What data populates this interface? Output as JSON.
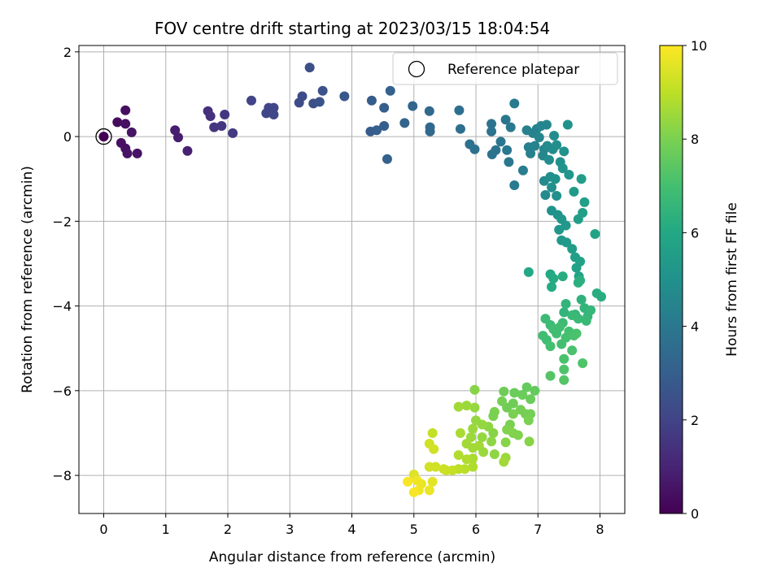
{
  "chart_data": {
    "type": "scatter",
    "title": "FOV centre drift starting at 2023/03/15 18:04:54",
    "xlabel": "Angular distance from reference (arcmin)",
    "ylabel": "Rotation from reference (arcmin)",
    "xlim": [
      -0.4,
      8.4
    ],
    "ylim": [
      -8.9,
      2.15
    ],
    "xticks": [
      "0",
      "1",
      "2",
      "3",
      "4",
      "5",
      "6",
      "7",
      "8"
    ],
    "yticks": [
      "2",
      "0",
      "−2",
      "−4",
      "−6",
      "−8"
    ],
    "grid": true,
    "legend": {
      "label": "Reference platepar",
      "position": "top-right",
      "point": {
        "x": 0,
        "y": 0
      }
    },
    "colorbar": {
      "label": "Hours from first FF file",
      "colormap": "viridis",
      "range": [
        0,
        10
      ],
      "ticks": [
        "0",
        "2",
        "4",
        "6",
        "8",
        "10"
      ]
    },
    "points": [
      {
        "x": 0.0,
        "y": 0.0,
        "t": 0.0
      },
      {
        "x": 0.22,
        "y": 0.34,
        "t": 0.3
      },
      {
        "x": 0.35,
        "y": 0.62,
        "t": 0.4
      },
      {
        "x": 0.35,
        "y": 0.3,
        "t": 0.4
      },
      {
        "x": 0.45,
        "y": 0.1,
        "t": 0.5
      },
      {
        "x": 0.28,
        "y": -0.15,
        "t": 0.4
      },
      {
        "x": 0.35,
        "y": -0.28,
        "t": 0.4
      },
      {
        "x": 0.38,
        "y": -0.4,
        "t": 0.5
      },
      {
        "x": 0.54,
        "y": -0.4,
        "t": 0.5
      },
      {
        "x": 1.15,
        "y": 0.15,
        "t": 0.8
      },
      {
        "x": 1.2,
        "y": -0.02,
        "t": 0.8
      },
      {
        "x": 1.35,
        "y": -0.34,
        "t": 0.9
      },
      {
        "x": 1.68,
        "y": 0.6,
        "t": 1.4
      },
      {
        "x": 1.72,
        "y": 0.48,
        "t": 1.4
      },
      {
        "x": 1.78,
        "y": 0.22,
        "t": 1.5
      },
      {
        "x": 1.9,
        "y": 0.25,
        "t": 1.6
      },
      {
        "x": 1.95,
        "y": 0.52,
        "t": 1.6
      },
      {
        "x": 2.08,
        "y": 0.08,
        "t": 1.7
      },
      {
        "x": 2.38,
        "y": 0.85,
        "t": 2.0
      },
      {
        "x": 2.62,
        "y": 0.55,
        "t": 2.1
      },
      {
        "x": 2.66,
        "y": 0.68,
        "t": 2.1
      },
      {
        "x": 2.74,
        "y": 0.68,
        "t": 2.1
      },
      {
        "x": 2.74,
        "y": 0.52,
        "t": 2.2
      },
      {
        "x": 3.15,
        "y": 0.8,
        "t": 2.3
      },
      {
        "x": 3.2,
        "y": 0.95,
        "t": 2.3
      },
      {
        "x": 3.32,
        "y": 1.63,
        "t": 2.4
      },
      {
        "x": 3.38,
        "y": 0.78,
        "t": 2.4
      },
      {
        "x": 3.48,
        "y": 0.82,
        "t": 2.5
      },
      {
        "x": 3.53,
        "y": 1.08,
        "t": 2.5
      },
      {
        "x": 3.88,
        "y": 0.95,
        "t": 2.7
      },
      {
        "x": 4.3,
        "y": 0.12,
        "t": 2.9
      },
      {
        "x": 4.32,
        "y": 0.85,
        "t": 2.9
      },
      {
        "x": 4.4,
        "y": 0.15,
        "t": 3.0
      },
      {
        "x": 4.52,
        "y": 0.25,
        "t": 3.0
      },
      {
        "x": 4.52,
        "y": 0.68,
        "t": 3.0
      },
      {
        "x": 4.57,
        "y": -0.53,
        "t": 3.1
      },
      {
        "x": 4.62,
        "y": 1.08,
        "t": 3.1
      },
      {
        "x": 4.85,
        "y": 0.32,
        "t": 3.2
      },
      {
        "x": 4.98,
        "y": 0.72,
        "t": 3.3
      },
      {
        "x": 5.25,
        "y": 0.6,
        "t": 3.4
      },
      {
        "x": 5.26,
        "y": 0.22,
        "t": 3.4
      },
      {
        "x": 5.26,
        "y": 0.12,
        "t": 3.4
      },
      {
        "x": 5.73,
        "y": 0.62,
        "t": 3.6
      },
      {
        "x": 5.75,
        "y": 0.18,
        "t": 3.6
      },
      {
        "x": 5.9,
        "y": -0.18,
        "t": 3.7
      },
      {
        "x": 5.98,
        "y": -0.3,
        "t": 3.7
      },
      {
        "x": 6.25,
        "y": 0.3,
        "t": 3.8
      },
      {
        "x": 6.25,
        "y": 0.12,
        "t": 3.8
      },
      {
        "x": 6.26,
        "y": -0.42,
        "t": 3.8
      },
      {
        "x": 6.32,
        "y": -0.32,
        "t": 3.8
      },
      {
        "x": 6.4,
        "y": -0.12,
        "t": 3.9
      },
      {
        "x": 6.48,
        "y": 0.4,
        "t": 3.9
      },
      {
        "x": 6.5,
        "y": -0.32,
        "t": 4.0
      },
      {
        "x": 6.53,
        "y": -0.6,
        "t": 4.0
      },
      {
        "x": 6.56,
        "y": 0.22,
        "t": 4.0
      },
      {
        "x": 6.62,
        "y": 0.78,
        "t": 4.1
      },
      {
        "x": 6.62,
        "y": -1.15,
        "t": 4.1
      },
      {
        "x": 6.76,
        "y": -0.8,
        "t": 4.2
      },
      {
        "x": 6.82,
        "y": 0.15,
        "t": 4.3
      },
      {
        "x": 6.85,
        "y": -0.25,
        "t": 4.3
      },
      {
        "x": 6.88,
        "y": -0.4,
        "t": 4.3
      },
      {
        "x": 6.92,
        "y": 0.08,
        "t": 4.4
      },
      {
        "x": 6.95,
        "y": -0.22,
        "t": 4.4
      },
      {
        "x": 6.98,
        "y": 0.18,
        "t": 4.4
      },
      {
        "x": 7.02,
        "y": -0.02,
        "t": 4.5
      },
      {
        "x": 7.05,
        "y": 0.25,
        "t": 4.5
      },
      {
        "x": 7.08,
        "y": -0.45,
        "t": 4.6
      },
      {
        "x": 7.1,
        "y": -0.3,
        "t": 4.6
      },
      {
        "x": 7.1,
        "y": -1.05,
        "t": 4.7
      },
      {
        "x": 7.12,
        "y": -1.38,
        "t": 4.7
      },
      {
        "x": 7.14,
        "y": 0.28,
        "t": 4.6
      },
      {
        "x": 7.15,
        "y": -0.22,
        "t": 4.7
      },
      {
        "x": 7.18,
        "y": -0.55,
        "t": 4.8
      },
      {
        "x": 7.2,
        "y": -0.95,
        "t": 4.9
      },
      {
        "x": 7.22,
        "y": -1.2,
        "t": 4.9
      },
      {
        "x": 7.22,
        "y": -1.75,
        "t": 5.0
      },
      {
        "x": 7.24,
        "y": -0.3,
        "t": 4.8
      },
      {
        "x": 7.26,
        "y": 0.02,
        "t": 4.8
      },
      {
        "x": 7.28,
        "y": -1.0,
        "t": 5.0
      },
      {
        "x": 7.3,
        "y": -0.2,
        "t": 4.9
      },
      {
        "x": 7.3,
        "y": -1.4,
        "t": 5.0
      },
      {
        "x": 7.32,
        "y": -1.85,
        "t": 5.1
      },
      {
        "x": 7.34,
        "y": -2.2,
        "t": 5.2
      },
      {
        "x": 7.36,
        "y": -0.6,
        "t": 5.0
      },
      {
        "x": 7.38,
        "y": -1.95,
        "t": 5.2
      },
      {
        "x": 7.38,
        "y": -2.45,
        "t": 5.3
      },
      {
        "x": 7.4,
        "y": -0.75,
        "t": 5.1
      },
      {
        "x": 7.42,
        "y": -0.35,
        "t": 5.0
      },
      {
        "x": 7.45,
        "y": -2.1,
        "t": 5.3
      },
      {
        "x": 7.46,
        "y": -2.5,
        "t": 5.4
      },
      {
        "x": 7.48,
        "y": 0.28,
        "t": 5.0
      },
      {
        "x": 7.5,
        "y": -0.9,
        "t": 5.2
      },
      {
        "x": 7.55,
        "y": -2.65,
        "t": 5.5
      },
      {
        "x": 7.58,
        "y": -1.3,
        "t": 5.4
      },
      {
        "x": 7.6,
        "y": -2.85,
        "t": 5.6
      },
      {
        "x": 7.62,
        "y": -3.1,
        "t": 5.7
      },
      {
        "x": 7.65,
        "y": -1.95,
        "t": 5.5
      },
      {
        "x": 7.66,
        "y": -3.3,
        "t": 5.8
      },
      {
        "x": 7.68,
        "y": -2.95,
        "t": 5.7
      },
      {
        "x": 7.7,
        "y": -1.0,
        "t": 5.5
      },
      {
        "x": 7.72,
        "y": -1.8,
        "t": 5.6
      },
      {
        "x": 7.75,
        "y": -1.55,
        "t": 5.6
      },
      {
        "x": 7.92,
        "y": -2.3,
        "t": 5.8
      },
      {
        "x": 7.95,
        "y": -3.7,
        "t": 6.2
      },
      {
        "x": 8.02,
        "y": -3.78,
        "t": 6.2
      },
      {
        "x": 6.85,
        "y": -3.2,
        "t": 6.0
      },
      {
        "x": 7.2,
        "y": -3.25,
        "t": 6.0
      },
      {
        "x": 7.22,
        "y": -3.55,
        "t": 6.1
      },
      {
        "x": 7.25,
        "y": -3.35,
        "t": 6.1
      },
      {
        "x": 7.4,
        "y": -3.3,
        "t": 6.2
      },
      {
        "x": 7.65,
        "y": -3.45,
        "t": 6.3
      },
      {
        "x": 7.68,
        "y": -3.4,
        "t": 6.3
      },
      {
        "x": 7.7,
        "y": -3.85,
        "t": 6.4
      },
      {
        "x": 7.45,
        "y": -3.95,
        "t": 6.5
      },
      {
        "x": 7.42,
        "y": -4.15,
        "t": 6.5
      },
      {
        "x": 7.6,
        "y": -4.2,
        "t": 6.6
      },
      {
        "x": 7.75,
        "y": -4.05,
        "t": 6.5
      },
      {
        "x": 7.8,
        "y": -4.25,
        "t": 6.6
      },
      {
        "x": 7.85,
        "y": -4.1,
        "t": 6.6
      },
      {
        "x": 7.78,
        "y": -4.35,
        "t": 6.7
      },
      {
        "x": 7.65,
        "y": -4.3,
        "t": 6.7
      },
      {
        "x": 7.55,
        "y": -4.22,
        "t": 6.7
      },
      {
        "x": 7.4,
        "y": -4.4,
        "t": 6.8
      },
      {
        "x": 7.2,
        "y": -4.45,
        "t": 6.8
      },
      {
        "x": 7.12,
        "y": -4.3,
        "t": 6.8
      },
      {
        "x": 7.08,
        "y": -4.7,
        "t": 6.9
      },
      {
        "x": 7.14,
        "y": -4.8,
        "t": 6.9
      },
      {
        "x": 7.2,
        "y": -4.95,
        "t": 7.0
      },
      {
        "x": 7.25,
        "y": -4.55,
        "t": 6.9
      },
      {
        "x": 7.3,
        "y": -4.65,
        "t": 6.9
      },
      {
        "x": 7.35,
        "y": -4.5,
        "t": 6.9
      },
      {
        "x": 7.38,
        "y": -4.9,
        "t": 7.0
      },
      {
        "x": 7.42,
        "y": -5.25,
        "t": 7.1
      },
      {
        "x": 7.45,
        "y": -4.75,
        "t": 7.0
      },
      {
        "x": 7.5,
        "y": -4.6,
        "t": 7.0
      },
      {
        "x": 7.55,
        "y": -5.05,
        "t": 7.1
      },
      {
        "x": 7.58,
        "y": -4.7,
        "t": 7.1
      },
      {
        "x": 7.62,
        "y": -4.65,
        "t": 7.1
      },
      {
        "x": 7.42,
        "y": -5.5,
        "t": 7.2
      },
      {
        "x": 7.72,
        "y": -5.35,
        "t": 7.2
      },
      {
        "x": 7.2,
        "y": -5.65,
        "t": 7.3
      },
      {
        "x": 7.42,
        "y": -5.75,
        "t": 7.3
      },
      {
        "x": 6.95,
        "y": -6.0,
        "t": 7.6
      },
      {
        "x": 6.82,
        "y": -5.92,
        "t": 7.6
      },
      {
        "x": 6.88,
        "y": -6.2,
        "t": 7.7
      },
      {
        "x": 6.75,
        "y": -6.1,
        "t": 7.7
      },
      {
        "x": 6.62,
        "y": -6.05,
        "t": 7.7
      },
      {
        "x": 6.6,
        "y": -6.3,
        "t": 7.8
      },
      {
        "x": 6.45,
        "y": -6.02,
        "t": 7.8
      },
      {
        "x": 6.5,
        "y": -6.4,
        "t": 7.8
      },
      {
        "x": 6.72,
        "y": -6.45,
        "t": 7.9
      },
      {
        "x": 6.8,
        "y": -6.55,
        "t": 7.9
      },
      {
        "x": 6.88,
        "y": -6.55,
        "t": 7.9
      },
      {
        "x": 6.85,
        "y": -6.7,
        "t": 8.0
      },
      {
        "x": 6.6,
        "y": -6.55,
        "t": 8.0
      },
      {
        "x": 6.55,
        "y": -6.8,
        "t": 8.0
      },
      {
        "x": 6.5,
        "y": -6.92,
        "t": 8.1
      },
      {
        "x": 6.42,
        "y": -6.25,
        "t": 7.9
      },
      {
        "x": 6.3,
        "y": -6.5,
        "t": 8.0
      },
      {
        "x": 6.28,
        "y": -6.6,
        "t": 8.0
      },
      {
        "x": 6.68,
        "y": -7.05,
        "t": 8.1
      },
      {
        "x": 6.6,
        "y": -7.0,
        "t": 8.1
      },
      {
        "x": 6.86,
        "y": -7.2,
        "t": 8.2
      },
      {
        "x": 6.48,
        "y": -7.22,
        "t": 8.2
      },
      {
        "x": 6.28,
        "y": -7.0,
        "t": 8.2
      },
      {
        "x": 6.25,
        "y": -7.2,
        "t": 8.3
      },
      {
        "x": 6.3,
        "y": -7.5,
        "t": 8.3
      },
      {
        "x": 6.2,
        "y": -6.85,
        "t": 8.3
      },
      {
        "x": 6.1,
        "y": -7.1,
        "t": 8.4
      },
      {
        "x": 6.1,
        "y": -6.8,
        "t": 8.4
      },
      {
        "x": 6.0,
        "y": -6.7,
        "t": 8.4
      },
      {
        "x": 5.98,
        "y": -5.98,
        "t": 8.2
      },
      {
        "x": 5.98,
        "y": -6.4,
        "t": 8.4
      },
      {
        "x": 5.95,
        "y": -6.9,
        "t": 8.5
      },
      {
        "x": 5.92,
        "y": -7.1,
        "t": 8.5
      },
      {
        "x": 5.85,
        "y": -6.35,
        "t": 8.5
      },
      {
        "x": 5.72,
        "y": -6.38,
        "t": 8.6
      },
      {
        "x": 5.85,
        "y": -7.25,
        "t": 8.6
      },
      {
        "x": 5.95,
        "y": -7.35,
        "t": 8.6
      },
      {
        "x": 6.05,
        "y": -7.3,
        "t": 8.6
      },
      {
        "x": 6.12,
        "y": -7.45,
        "t": 8.5
      },
      {
        "x": 6.48,
        "y": -7.58,
        "t": 8.5
      },
      {
        "x": 6.45,
        "y": -7.68,
        "t": 8.6
      },
      {
        "x": 5.95,
        "y": -7.6,
        "t": 8.7
      },
      {
        "x": 5.95,
        "y": -7.8,
        "t": 8.8
      },
      {
        "x": 5.85,
        "y": -7.62,
        "t": 8.8
      },
      {
        "x": 5.75,
        "y": -7.0,
        "t": 8.7
      },
      {
        "x": 5.72,
        "y": -7.52,
        "t": 8.8
      },
      {
        "x": 5.82,
        "y": -7.85,
        "t": 8.9
      },
      {
        "x": 5.72,
        "y": -7.85,
        "t": 9.0
      },
      {
        "x": 5.62,
        "y": -7.88,
        "t": 9.1
      },
      {
        "x": 5.52,
        "y": -7.88,
        "t": 9.2
      },
      {
        "x": 5.48,
        "y": -7.85,
        "t": 9.2
      },
      {
        "x": 5.35,
        "y": -7.8,
        "t": 9.3
      },
      {
        "x": 5.25,
        "y": -7.8,
        "t": 9.3
      },
      {
        "x": 5.3,
        "y": -7.0,
        "t": 9.1
      },
      {
        "x": 5.25,
        "y": -7.25,
        "t": 9.3
      },
      {
        "x": 5.32,
        "y": -7.38,
        "t": 9.3
      },
      {
        "x": 5.0,
        "y": -7.98,
        "t": 9.5
      },
      {
        "x": 5.3,
        "y": -8.15,
        "t": 9.6
      },
      {
        "x": 5.25,
        "y": -8.35,
        "t": 9.7
      },
      {
        "x": 5.12,
        "y": -8.2,
        "t": 9.7
      },
      {
        "x": 5.08,
        "y": -8.35,
        "t": 9.8
      },
      {
        "x": 5.0,
        "y": -8.4,
        "t": 9.9
      },
      {
        "x": 4.9,
        "y": -8.15,
        "t": 9.9
      },
      {
        "x": 5.05,
        "y": -8.12,
        "t": 9.8
      }
    ]
  }
}
